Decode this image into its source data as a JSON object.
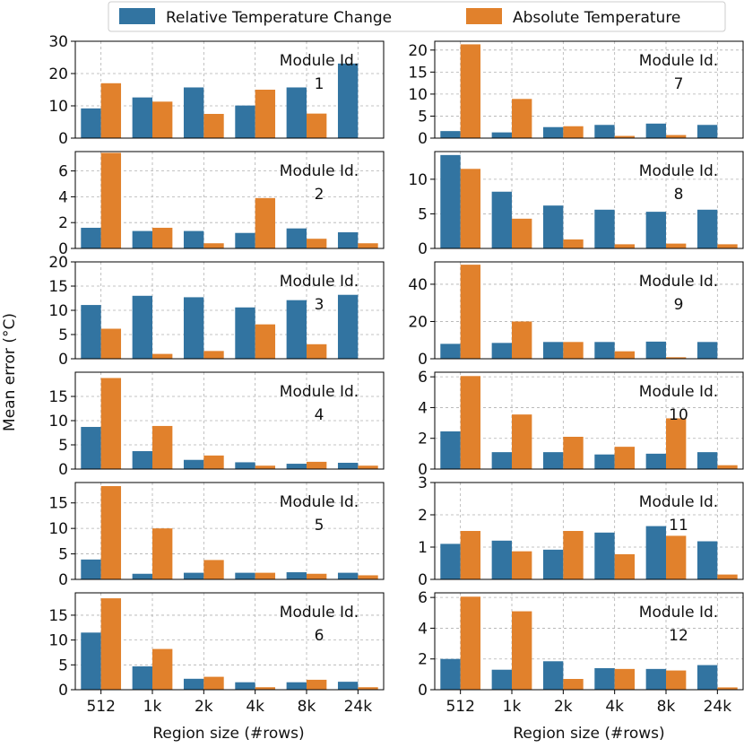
{
  "colors": {
    "relative": "#3274a1",
    "absolute": "#e1812c",
    "grid": "#b0b0b0",
    "frame": "#000000"
  },
  "legend": {
    "items": [
      {
        "label": "Relative Temperature Change",
        "color": "#3274a1"
      },
      {
        "label": "Absolute Temperature",
        "color": "#e1812c"
      }
    ]
  },
  "shared": {
    "ylabel": "Mean error (°C)",
    "xlabel": "Region size (#rows)",
    "module_label": "Module Id."
  },
  "chart_data": [
    {
      "type": "bar",
      "module": "1",
      "categories": [
        "512",
        "1k",
        "2k",
        "4k",
        "8k",
        "24k"
      ],
      "ylim": [
        0,
        30
      ],
      "yticks": [
        0,
        10,
        20,
        30
      ],
      "series": [
        {
          "name": "Relative Temperature Change",
          "values": [
            9.2,
            12.6,
            15.7,
            10.1,
            15.7,
            23.1
          ]
        },
        {
          "name": "Absolute Temperature",
          "values": [
            17.0,
            11.3,
            7.5,
            15.0,
            7.6,
            null
          ]
        }
      ]
    },
    {
      "type": "bar",
      "module": "2",
      "categories": [
        "512",
        "1k",
        "2k",
        "4k",
        "8k",
        "24k"
      ],
      "ylim": [
        0,
        7.5
      ],
      "yticks": [
        0,
        2,
        4,
        6
      ],
      "series": [
        {
          "name": "Relative Temperature Change",
          "values": [
            1.6,
            1.35,
            1.35,
            1.2,
            1.55,
            1.25
          ]
        },
        {
          "name": "Absolute Temperature",
          "values": [
            7.4,
            1.6,
            0.4,
            3.9,
            0.75,
            0.4
          ]
        }
      ]
    },
    {
      "type": "bar",
      "module": "3",
      "categories": [
        "512",
        "1k",
        "2k",
        "4k",
        "8k",
        "24k"
      ],
      "ylim": [
        0,
        20
      ],
      "yticks": [
        0,
        5,
        10,
        15,
        20
      ],
      "series": [
        {
          "name": "Relative Temperature Change",
          "values": [
            11.1,
            13.0,
            12.7,
            10.6,
            12.1,
            13.2
          ]
        },
        {
          "name": "Absolute Temperature",
          "values": [
            6.2,
            1.0,
            1.6,
            7.1,
            3.0,
            null
          ]
        }
      ]
    },
    {
      "type": "bar",
      "module": "4",
      "categories": [
        "512",
        "1k",
        "2k",
        "4k",
        "8k",
        "24k"
      ],
      "ylim": [
        0,
        20
      ],
      "yticks": [
        0,
        5,
        10,
        15
      ],
      "series": [
        {
          "name": "Relative Temperature Change",
          "values": [
            8.7,
            3.7,
            1.9,
            1.4,
            1.1,
            1.3
          ]
        },
        {
          "name": "Absolute Temperature",
          "values": [
            18.8,
            8.9,
            2.8,
            0.7,
            1.5,
            0.7
          ]
        }
      ]
    },
    {
      "type": "bar",
      "module": "5",
      "categories": [
        "512",
        "1k",
        "2k",
        "4k",
        "8k",
        "24k"
      ],
      "ylim": [
        0,
        19
      ],
      "yticks": [
        0,
        5,
        10,
        15
      ],
      "series": [
        {
          "name": "Relative Temperature Change",
          "values": [
            3.9,
            1.1,
            1.3,
            1.3,
            1.4,
            1.3
          ]
        },
        {
          "name": "Absolute Temperature",
          "values": [
            18.3,
            10.0,
            3.8,
            1.3,
            1.1,
            0.8
          ]
        }
      ]
    },
    {
      "type": "bar",
      "module": "6",
      "categories": [
        "512",
        "1k",
        "2k",
        "4k",
        "8k",
        "24k"
      ],
      "ylim": [
        0,
        19.5
      ],
      "yticks": [
        0,
        5,
        10,
        15
      ],
      "series": [
        {
          "name": "Relative Temperature Change",
          "values": [
            11.5,
            4.7,
            2.2,
            1.5,
            1.5,
            1.6
          ]
        },
        {
          "name": "Absolute Temperature",
          "values": [
            18.4,
            8.2,
            2.6,
            0.5,
            2.0,
            0.5
          ]
        }
      ]
    },
    {
      "type": "bar",
      "module": "7",
      "categories": [
        "512",
        "1k",
        "2k",
        "4k",
        "8k",
        "24k"
      ],
      "ylim": [
        0,
        22
      ],
      "yticks": [
        0,
        5,
        10,
        15,
        20
      ],
      "series": [
        {
          "name": "Relative Temperature Change",
          "values": [
            1.6,
            1.3,
            2.5,
            3.0,
            3.3,
            3.0
          ]
        },
        {
          "name": "Absolute Temperature",
          "values": [
            21.3,
            8.9,
            2.7,
            0.5,
            0.7,
            null
          ]
        }
      ]
    },
    {
      "type": "bar",
      "module": "8",
      "categories": [
        "512",
        "1k",
        "2k",
        "4k",
        "8k",
        "24k"
      ],
      "ylim": [
        0,
        14
      ],
      "yticks": [
        0,
        5,
        10
      ],
      "series": [
        {
          "name": "Relative Temperature Change",
          "values": [
            13.5,
            8.2,
            6.2,
            5.6,
            5.3,
            5.6
          ]
        },
        {
          "name": "Absolute Temperature",
          "values": [
            11.5,
            4.3,
            1.3,
            0.6,
            0.7,
            0.6
          ]
        }
      ]
    },
    {
      "type": "bar",
      "module": "9",
      "categories": [
        "512",
        "1k",
        "2k",
        "4k",
        "8k",
        "24k"
      ],
      "ylim": [
        0,
        52
      ],
      "yticks": [
        0,
        20,
        40
      ],
      "series": [
        {
          "name": "Relative Temperature Change",
          "values": [
            8.0,
            8.5,
            9.0,
            9.0,
            9.2,
            9.0
          ]
        },
        {
          "name": "Absolute Temperature",
          "values": [
            50.5,
            20.0,
            9.0,
            4.0,
            0.8,
            null
          ]
        }
      ]
    },
    {
      "type": "bar",
      "module": "10",
      "categories": [
        "512",
        "1k",
        "2k",
        "4k",
        "8k",
        "24k"
      ],
      "ylim": [
        0,
        6.3
      ],
      "yticks": [
        0,
        2,
        4,
        6
      ],
      "series": [
        {
          "name": "Relative Temperature Change",
          "values": [
            2.45,
            1.1,
            1.1,
            0.95,
            1.0,
            1.1
          ]
        },
        {
          "name": "Absolute Temperature",
          "values": [
            6.05,
            3.55,
            2.1,
            1.45,
            3.3,
            0.25
          ]
        }
      ]
    },
    {
      "type": "bar",
      "module": "11",
      "categories": [
        "512",
        "1k",
        "2k",
        "4k",
        "8k",
        "24k"
      ],
      "ylim": [
        0,
        3
      ],
      "yticks": [
        0,
        1,
        2,
        3
      ],
      "series": [
        {
          "name": "Relative Temperature Change",
          "values": [
            1.1,
            1.2,
            0.92,
            1.45,
            1.65,
            1.18
          ]
        },
        {
          "name": "Absolute Temperature",
          "values": [
            1.5,
            0.87,
            1.5,
            0.78,
            1.35,
            0.15
          ]
        }
      ]
    },
    {
      "type": "bar",
      "module": "12",
      "categories": [
        "512",
        "1k",
        "2k",
        "4k",
        "8k",
        "24k"
      ],
      "ylim": [
        0,
        6.3
      ],
      "yticks": [
        0,
        2,
        4,
        6
      ],
      "series": [
        {
          "name": "Relative Temperature Change",
          "values": [
            2.0,
            1.3,
            1.85,
            1.4,
            1.35,
            1.6
          ]
        },
        {
          "name": "Absolute Temperature",
          "values": [
            6.05,
            5.1,
            0.7,
            1.35,
            1.25,
            0.15
          ]
        }
      ]
    }
  ]
}
